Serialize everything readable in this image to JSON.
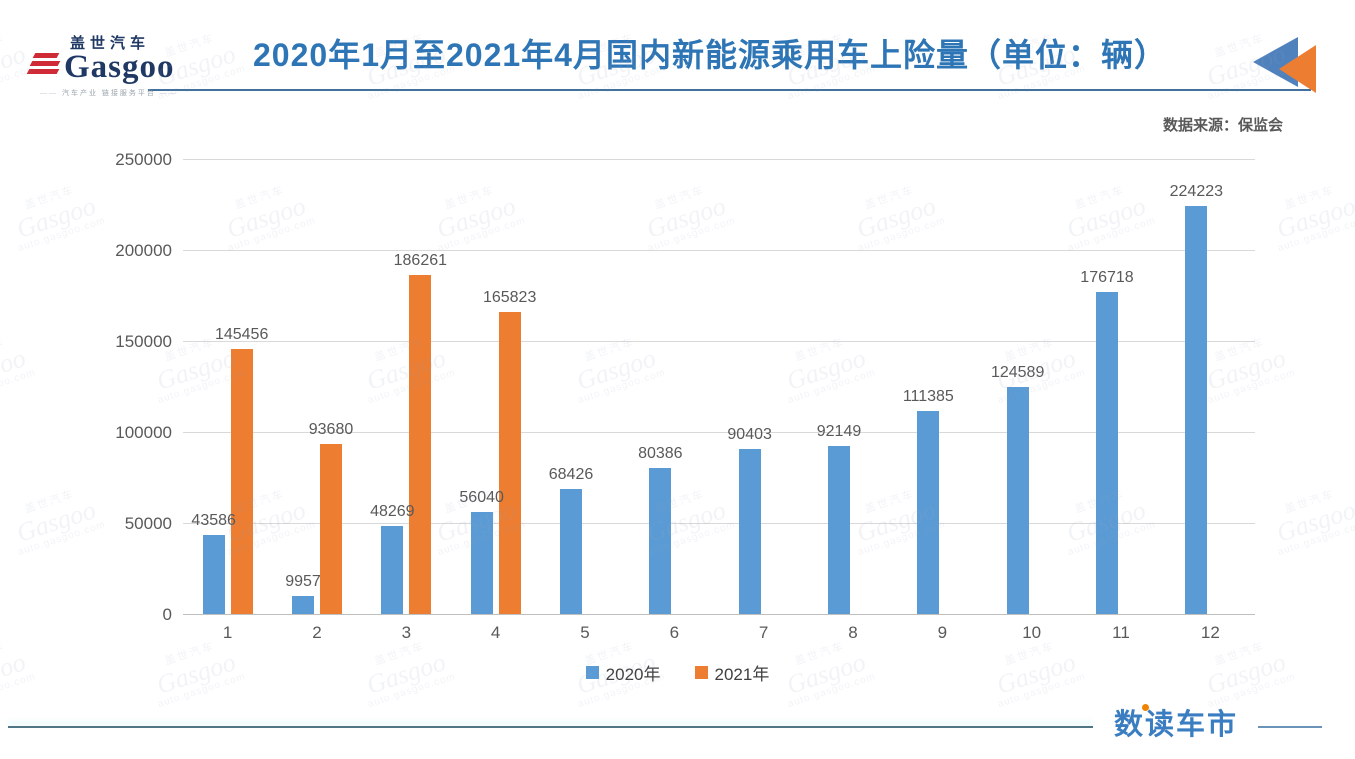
{
  "header": {
    "logo": {
      "cn": "盖世汽车",
      "en": "Gasgoo",
      "tagline": "汽车产业 链接服务平台"
    },
    "title": "2020年1月至2021年4月国内新能源乘用车上险量（单位：辆）",
    "source": "数据来源：保监会"
  },
  "watermark": {
    "line1": "盖世汽车",
    "line2": "Gasgoo",
    "line3": "auto.gasgoo.com"
  },
  "chart_data": {
    "type": "bar",
    "title": "2020年1月至2021年4月国内新能源乘用车上险量（单位：辆）",
    "categories": [
      "1",
      "2",
      "3",
      "4",
      "5",
      "6",
      "7",
      "8",
      "9",
      "10",
      "11",
      "12"
    ],
    "series": [
      {
        "name": "2020年",
        "color": "#5B9BD5",
        "values": [
          43586,
          9957,
          48269,
          56040,
          68426,
          80386,
          90403,
          92149,
          111385,
          124589,
          176718,
          224223
        ]
      },
      {
        "name": "2021年",
        "color": "#ED7D31",
        "values": [
          145456,
          93680,
          186261,
          165823,
          null,
          null,
          null,
          null,
          null,
          null,
          null,
          null
        ]
      }
    ],
    "xlabel": "",
    "ylabel": "",
    "ylim": [
      0,
      250000
    ],
    "yticks": [
      0,
      50000,
      100000,
      150000,
      200000,
      250000
    ],
    "grid": true,
    "legend_position": "bottom",
    "bar_labels": true,
    "axis_label_color": "#595959",
    "gridline_color": "#D9D9D9"
  },
  "icons": {
    "corner_arrows": {
      "blue": "#4F81BD",
      "orange": "#ED7D31"
    }
  },
  "footer": {
    "brand": "数读车市",
    "accent_dot_color": "#F08300"
  }
}
